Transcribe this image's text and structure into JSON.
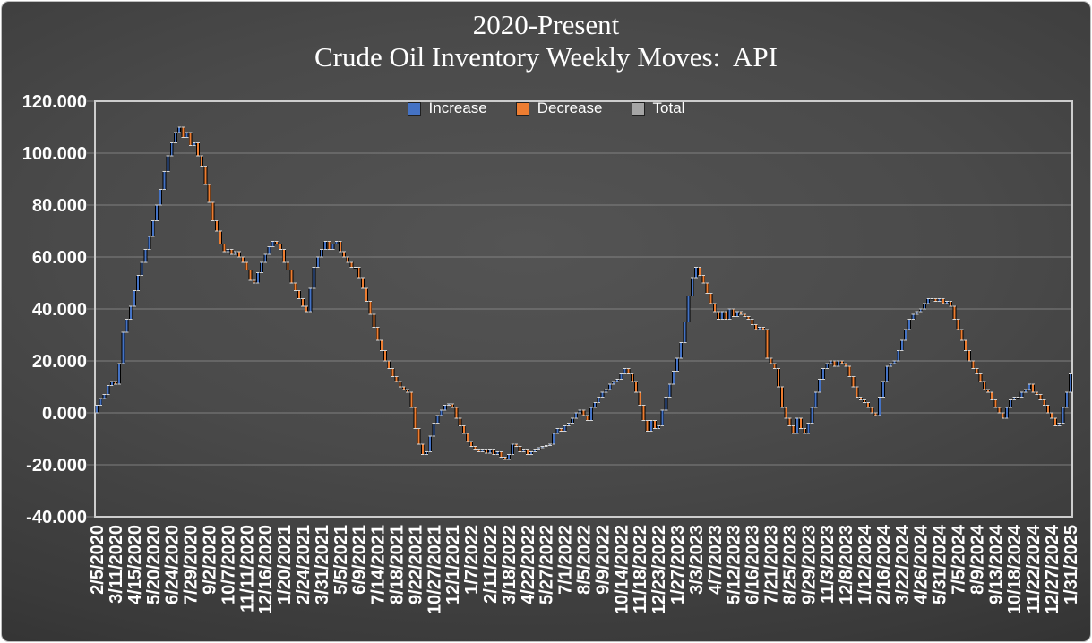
{
  "title": {
    "line1": "2020-Present",
    "line2": "Crude Oil Inventory Weekly Moves:  API"
  },
  "legend": {
    "items": [
      {
        "label": "Increase",
        "color": "#4472C4"
      },
      {
        "label": "Decrease",
        "color": "#ED7D31"
      },
      {
        "label": "Total",
        "color": "#A5A5A5"
      }
    ]
  },
  "colors": {
    "background_center": "#545454",
    "background_edge": "#252525",
    "increase": "#4472C4",
    "decrease": "#ED7D31",
    "total": "#A5A5A5",
    "gridline": "#8d8d8d",
    "axis_border": "#cdcdcd",
    "bar_outline": "#000000",
    "bar_cap": "#e6e6e6",
    "text": "#ffffff"
  },
  "chart_data": {
    "type": "bar",
    "subtype": "waterfall",
    "title": "2020-Present Crude Oil Inventory Weekly Moves: API",
    "legend_entries": [
      "Increase",
      "Decrease",
      "Total"
    ],
    "legend_position": "top-center",
    "grid": "horizontal",
    "ylim": [
      -40,
      120
    ],
    "y_tick_step": 20,
    "y_tick_labels": [
      "120.000",
      "100.000",
      "80.000",
      "60.000",
      "40.000",
      "20.000",
      "0.000",
      "-20.000",
      "-40.000"
    ],
    "x_ticks_every_n_weeks": 5,
    "x_tick_labels": [
      "2/5/2020",
      "3/11/2020",
      "4/15/2020",
      "5/20/2020",
      "6/24/2020",
      "7/29/2020",
      "9/2/2020",
      "10/7/2020",
      "11/11/2020",
      "12/16/2020",
      "1/20/2021",
      "2/24/2021",
      "3/31/2021",
      "5/5/2021",
      "6/9/2021",
      "7/14/2021",
      "8/18/2021",
      "9/22/2021",
      "10/27/2021",
      "12/1/2021",
      "1/7/2022",
      "2/11/2022",
      "3/18/2022",
      "4/22/2022",
      "5/27/2022",
      "7/1/2022",
      "8/5/2022",
      "9/9/2022",
      "10/14/2022",
      "11/18/2022",
      "12/23/2022",
      "1/27/2023",
      "3/3/2023",
      "4/7/2023",
      "5/12/2023",
      "6/16/2023",
      "7/21/2023",
      "8/25/2023",
      "9/29/2023",
      "11/3/2023",
      "12/8/2023",
      "1/12/2024",
      "2/16/2024",
      "3/22/2024",
      "4/26/2024",
      "5/31/2024",
      "7/5/2024",
      "8/9/2024",
      "9/13/2024",
      "10/18/2024",
      "11/22/2024",
      "12/27/2024",
      "1/31/2025"
    ],
    "series_note": "weekly waterfall; cumulative_totals[i] is the running total after week i (estimated from pixels); bar i runs from cumulative_totals[i-1] (0 for i=0) to cumulative_totals[i]; blue = increase, orange = decrease",
    "cumulative_totals": [
      3,
      5.5,
      7,
      10.5,
      12,
      11,
      19,
      31,
      36,
      41,
      47,
      53,
      58,
      63,
      68,
      74,
      80,
      86,
      93,
      99,
      104,
      108,
      110,
      106,
      108,
      103,
      104,
      99,
      95,
      88,
      81,
      74,
      70,
      65,
      62,
      63,
      61,
      62,
      60,
      58,
      55,
      51,
      50,
      54,
      58,
      61,
      64,
      66,
      65,
      63,
      58,
      55,
      50,
      47,
      44,
      41,
      39,
      48,
      56,
      60,
      63,
      66,
      63,
      65,
      66,
      62,
      60,
      58,
      56,
      56,
      52,
      48,
      43,
      38,
      33,
      28,
      24,
      20,
      17,
      14,
      12,
      10,
      9,
      8,
      2,
      -6,
      -12,
      -16,
      -15,
      -9,
      -4,
      -1,
      1,
      3,
      3.5,
      2,
      -2,
      -5,
      -8,
      -11,
      -13,
      -14,
      -15,
      -14,
      -15.5,
      -14,
      -16,
      -15,
      -17,
      -18,
      -16,
      -12,
      -13,
      -15,
      -14,
      -16,
      -15,
      -14,
      -13.5,
      -13,
      -12.5,
      -12,
      -8,
      -6,
      -7,
      -5,
      -4,
      -2,
      0,
      1,
      -1,
      -3,
      2,
      4,
      6,
      8,
      9,
      11,
      12,
      13,
      15,
      17,
      15,
      12,
      8,
      3,
      -3,
      -7,
      -3,
      -6,
      -5,
      1,
      6,
      11,
      16,
      21,
      27,
      35,
      45,
      52,
      56,
      53,
      50,
      46,
      42,
      39,
      36,
      39,
      36,
      40,
      37,
      39,
      38,
      37,
      36,
      34,
      32,
      33,
      32,
      21,
      19,
      17,
      10,
      2,
      -2,
      -5,
      -8,
      -2,
      -6,
      -8,
      -4,
      2,
      8,
      13,
      17,
      19,
      20,
      18,
      20,
      19,
      18,
      14,
      10,
      6,
      5,
      4,
      2,
      0,
      -1,
      6,
      12,
      18,
      19,
      20,
      24,
      28,
      32,
      36,
      38,
      39,
      40,
      42,
      44,
      44,
      43,
      44,
      42,
      43,
      41,
      36,
      32,
      28,
      24,
      20,
      17,
      15,
      12,
      9,
      8,
      5,
      2,
      0,
      -2,
      2,
      5,
      6,
      6,
      8,
      9,
      11,
      8,
      7,
      5,
      3,
      0,
      -2,
      -5,
      -4,
      2,
      8,
      15
    ]
  }
}
